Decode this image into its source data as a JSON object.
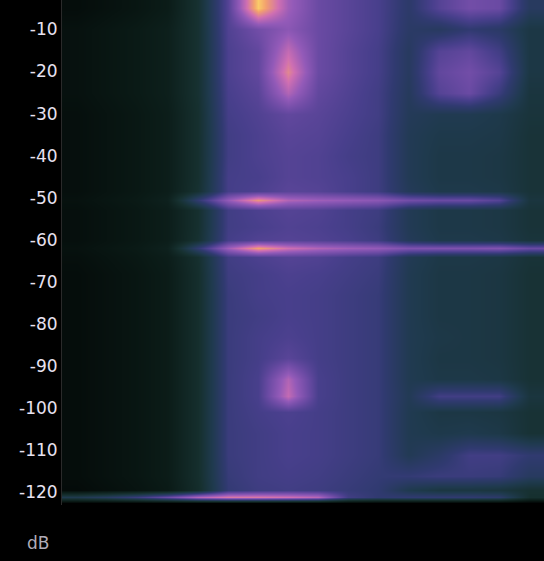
{
  "chart_data": {
    "type": "heatmap",
    "y_label": "dB",
    "y": [
      -5,
      -10,
      -15,
      -20,
      -25,
      -30,
      -35,
      -40,
      -45,
      -48.5,
      -50.5,
      -53,
      -57,
      -60,
      -62,
      -64,
      -68,
      -73,
      -78,
      -83,
      -88,
      -93,
      -97,
      -101,
      -106,
      -111,
      -116,
      -119.5,
      -121.2,
      -122.5
    ],
    "z": [
      [
        0.6,
        0.8,
        1.0,
        1.3,
        2.6,
        5.5,
        9.6,
        7.2,
        6.0,
        5.6,
        5.2,
        4.3,
        5.5,
        6.2,
        6.0,
        4.0
      ],
      [
        0.8,
        1.0,
        1.2,
        1.5,
        2.6,
        5.4,
        6.2,
        6.8,
        6.0,
        5.6,
        5.2,
        4.2,
        4.0,
        4.5,
        4.2,
        3.2
      ],
      [
        0.8,
        1.0,
        1.2,
        1.5,
        2.6,
        5.3,
        5.8,
        7.8,
        6.0,
        5.5,
        5.1,
        4.0,
        5.5,
        5.8,
        5.0,
        3.2
      ],
      [
        0.8,
        1.0,
        1.2,
        1.5,
        2.6,
        5.3,
        5.8,
        8.5,
        6.0,
        5.5,
        5.1,
        4.0,
        5.8,
        6.2,
        5.5,
        3.2
      ],
      [
        0.8,
        1.0,
        1.2,
        1.5,
        2.6,
        5.2,
        5.6,
        7.5,
        5.8,
        5.4,
        5.0,
        3.9,
        5.5,
        6.0,
        4.8,
        3.0
      ],
      [
        0.7,
        0.9,
        1.1,
        1.4,
        2.5,
        5.1,
        5.4,
        5.8,
        5.6,
        5.3,
        5.0,
        3.8,
        3.6,
        3.6,
        3.4,
        2.9
      ],
      [
        0.7,
        0.9,
        1.1,
        1.4,
        2.5,
        5.0,
        5.3,
        5.6,
        5.5,
        5.2,
        4.9,
        3.7,
        3.4,
        3.4,
        3.3,
        2.8
      ],
      [
        0.7,
        0.9,
        1.1,
        1.4,
        2.5,
        5.0,
        5.3,
        5.5,
        5.4,
        5.1,
        4.9,
        3.7,
        3.3,
        3.3,
        3.2,
        2.8
      ],
      [
        0.7,
        0.9,
        1.1,
        1.4,
        2.5,
        5.1,
        5.2,
        5.5,
        5.4,
        5.2,
        4.9,
        3.7,
        3.3,
        3.3,
        3.2,
        2.8
      ],
      [
        0.7,
        0.9,
        1.1,
        1.4,
        2.6,
        5.1,
        5.3,
        5.6,
        5.5,
        5.2,
        4.9,
        3.8,
        3.4,
        3.4,
        3.3,
        2.8
      ],
      [
        0.8,
        1.0,
        1.2,
        1.6,
        4.5,
        7.0,
        8.8,
        7.5,
        7.2,
        7.0,
        6.8,
        6.2,
        6.0,
        6.0,
        5.5,
        3.0
      ],
      [
        0.7,
        0.9,
        1.1,
        1.4,
        2.5,
        5.0,
        5.3,
        5.5,
        5.4,
        5.1,
        4.9,
        3.7,
        3.3,
        3.3,
        3.2,
        2.8
      ],
      [
        0.7,
        0.9,
        1.1,
        1.4,
        2.5,
        5.0,
        5.2,
        5.4,
        5.3,
        5.1,
        4.8,
        3.7,
        3.3,
        3.3,
        3.2,
        2.8
      ],
      [
        0.7,
        0.9,
        1.1,
        1.4,
        2.6,
        5.1,
        5.4,
        5.5,
        5.4,
        5.2,
        4.9,
        3.8,
        3.4,
        3.4,
        3.3,
        2.9
      ],
      [
        0.8,
        1.0,
        1.2,
        1.6,
        4.5,
        7.2,
        9.0,
        8.0,
        7.5,
        7.2,
        7.0,
        6.5,
        6.5,
        6.5,
        6.6,
        6.0
      ],
      [
        0.7,
        0.9,
        1.1,
        1.4,
        2.5,
        5.0,
        5.3,
        5.5,
        5.4,
        5.1,
        4.9,
        3.7,
        3.3,
        3.3,
        3.2,
        2.8
      ],
      [
        0.6,
        0.8,
        1.0,
        1.3,
        2.4,
        4.9,
        5.1,
        5.3,
        5.2,
        5.0,
        4.8,
        3.6,
        3.2,
        3.2,
        3.1,
        2.7
      ],
      [
        0.6,
        0.8,
        1.0,
        1.3,
        2.4,
        4.8,
        5.1,
        5.2,
        5.1,
        4.9,
        4.7,
        3.6,
        3.2,
        3.2,
        3.1,
        2.7
      ],
      [
        0.6,
        0.8,
        1.0,
        1.3,
        2.4,
        4.8,
        5.0,
        5.2,
        5.1,
        4.9,
        4.7,
        3.6,
        3.2,
        3.2,
        3.1,
        2.7
      ],
      [
        0.6,
        0.8,
        1.0,
        1.3,
        2.4,
        4.8,
        5.1,
        5.3,
        5.1,
        4.9,
        4.7,
        3.6,
        3.3,
        3.2,
        3.1,
        2.7
      ],
      [
        0.6,
        0.8,
        1.0,
        1.3,
        2.4,
        4.8,
        5.1,
        5.6,
        5.1,
        4.9,
        4.7,
        3.6,
        3.2,
        3.2,
        3.1,
        2.7
      ],
      [
        0.6,
        0.8,
        1.0,
        1.3,
        2.4,
        4.8,
        5.2,
        7.5,
        5.2,
        4.9,
        4.7,
        3.6,
        3.3,
        3.3,
        3.2,
        2.7
      ],
      [
        0.6,
        0.8,
        1.0,
        1.3,
        2.4,
        4.8,
        5.2,
        7.8,
        5.2,
        4.9,
        4.7,
        3.7,
        5.0,
        5.0,
        5.0,
        3.0
      ],
      [
        0.6,
        0.8,
        1.0,
        1.3,
        2.4,
        4.8,
        5.1,
        5.3,
        5.1,
        4.9,
        4.7,
        3.6,
        3.2,
        3.2,
        3.1,
        2.7
      ],
      [
        0.6,
        0.8,
        1.0,
        1.3,
        2.4,
        4.8,
        5.0,
        5.2,
        5.1,
        4.9,
        4.7,
        3.6,
        3.4,
        3.5,
        3.3,
        2.7
      ],
      [
        0.6,
        0.8,
        1.0,
        1.3,
        2.4,
        4.8,
        5.0,
        5.2,
        5.1,
        4.9,
        4.7,
        3.7,
        4.2,
        5.0,
        5.0,
        4.5
      ],
      [
        0.6,
        0.8,
        1.0,
        1.3,
        2.4,
        4.7,
        5.0,
        5.1,
        5.0,
        4.8,
        4.6,
        4.6,
        4.8,
        4.8,
        4.7,
        4.0
      ],
      [
        0.5,
        0.7,
        0.9,
        1.2,
        2.3,
        4.6,
        4.9,
        5.0,
        4.9,
        4.7,
        4.5,
        3.5,
        3.1,
        3.1,
        3.0,
        2.6
      ],
      [
        3.5,
        4.0,
        4.8,
        6.0,
        7.5,
        8.2,
        8.2,
        8.0,
        7.6,
        5.0,
        4.5,
        4.5,
        4.5,
        4.5,
        4.3,
        2.5
      ],
      [
        0.0,
        0.0,
        0.0,
        0.0,
        0.0,
        0.0,
        0.0,
        0.0,
        0.0,
        0.0,
        0.0,
        0.0,
        0.0,
        0.0,
        0.0,
        0.0
      ]
    ],
    "zlim": [
      0,
      10
    ],
    "ylim": [
      -123,
      -3
    ],
    "yticks": [
      -10,
      -20,
      -30,
      -40,
      -50,
      -60,
      -70,
      -80,
      -90,
      -100,
      -110,
      -120
    ],
    "tick_labels": "y",
    "grid": false
  }
}
